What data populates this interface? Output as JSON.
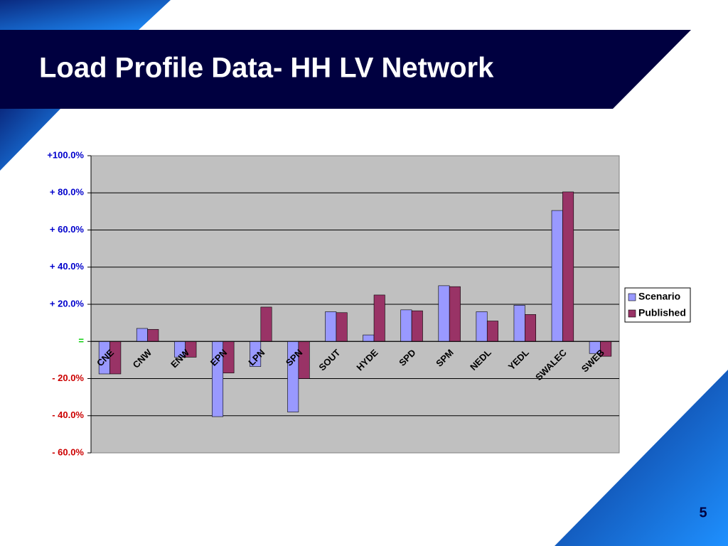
{
  "title": "Load Profile Data- HH LV Network",
  "page_number": "5",
  "chart_data": {
    "type": "bar",
    "categories": [
      "CNE",
      "CNW",
      "ENW",
      "EPN",
      "LPN",
      "SPN",
      "SOUT",
      "HYDE",
      "SPD",
      "SPM",
      "NEDL",
      "YEDL",
      "SWALEC",
      "SWEB"
    ],
    "series": [
      {
        "name": "Scenario",
        "color": "#9999ff",
        "values": [
          -17.5,
          7,
          -8.5,
          -40.5,
          -13.5,
          -38,
          16,
          3.5,
          17,
          30,
          16,
          19.5,
          70.5,
          -6.5
        ]
      },
      {
        "name": "Published",
        "color": "#993366",
        "values": [
          -17.5,
          6.5,
          -8.5,
          -17,
          18.5,
          -20,
          15.5,
          25,
          16.5,
          29.5,
          11,
          14.5,
          80.5,
          -8
        ]
      }
    ],
    "ylim": [
      -60,
      100
    ],
    "yticks": [
      {
        "value": -60,
        "label": "-  60.0%"
      },
      {
        "value": -40,
        "label": "-  40.0%"
      },
      {
        "value": -20,
        "label": "-  20.0%"
      },
      {
        "value": 0,
        "label": "="
      },
      {
        "value": 20,
        "label": "+  20.0%"
      },
      {
        "value": 40,
        "label": "+  40.0%"
      },
      {
        "value": 60,
        "label": "+  60.0%"
      },
      {
        "value": 80,
        "label": "+  80.0%"
      },
      {
        "value": 100,
        "label": "+100.0%"
      }
    ],
    "tick_label_colors": {
      "positive": "#0000cc",
      "zero": "#00cc00",
      "negative": "#cc0000"
    },
    "grid": true,
    "plot_background": "#c0c0c0",
    "legend": "right"
  }
}
